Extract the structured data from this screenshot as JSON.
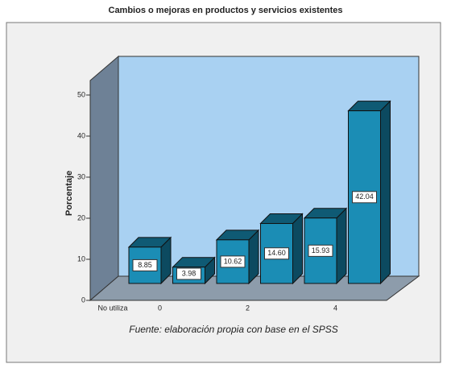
{
  "chart_data": {
    "type": "bar3d",
    "title": "Cambios o mejoras en productos y servicios existentes",
    "ylabel": "Porcentaje",
    "footnote": "Fuente: elaboración propia con base en el SPSS",
    "categories": [
      "No utiliza",
      "0",
      null,
      "2",
      null,
      "4"
    ],
    "values": [
      8.85,
      3.98,
      10.62,
      14.6,
      15.93,
      42.04
    ],
    "value_labels": [
      "8.85",
      "3.98",
      "10.62",
      "14.60",
      "15.93",
      "42.04"
    ],
    "color": "#1b8db5",
    "ylim": [
      0,
      50
    ],
    "yticks": [
      0,
      10,
      20,
      30,
      40,
      50
    ]
  }
}
